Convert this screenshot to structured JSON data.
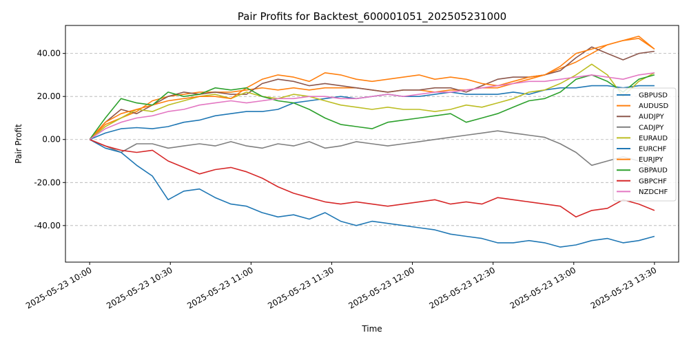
{
  "chart_data": {
    "type": "line",
    "title": "Pair Profits for Backtest_600001051_202505231000",
    "xlabel": "Time",
    "ylabel": "Pair Profit",
    "x_start": "2025-05-23 10:00",
    "x_end": "2025-05-23 13:30",
    "xlim": [
      "2025-05-23 09:51",
      "2025-05-23 13:39"
    ],
    "ylim": [
      -57,
      53
    ],
    "x_ticks": [
      "2025-05-23 10:00",
      "2025-05-23 10:30",
      "2025-05-23 11:00",
      "2025-05-23 11:30",
      "2025-05-23 12:00",
      "2025-05-23 12:30",
      "2025-05-23 13:00",
      "2025-05-23 13:30"
    ],
    "y_ticks": [
      "-40.00",
      "-20.00",
      "0.00",
      "20.00",
      "40.00"
    ],
    "grid": "horizontal dashed",
    "legend_position": "right",
    "series": [
      {
        "name": "GBPUSD",
        "color": "#1f77b4",
        "values": [
          0,
          3,
          5,
          5.5,
          5,
          6,
          8,
          9,
          11,
          12,
          13,
          13,
          14,
          17,
          18,
          19,
          20,
          19,
          20,
          21,
          20,
          20,
          21,
          22,
          21,
          21,
          21,
          22,
          21,
          23,
          24,
          24,
          25,
          25,
          24,
          25,
          25
        ]
      },
      {
        "name": "AUDUSD",
        "color": "#ff7f0e",
        "values": [
          0,
          7,
          10,
          13,
          18,
          20,
          21,
          22,
          22,
          22,
          23,
          24,
          23,
          24,
          23,
          24,
          24,
          24,
          23,
          22,
          23,
          23,
          22,
          23,
          23,
          24,
          24,
          26,
          28,
          30,
          33,
          36,
          40,
          44,
          46,
          48,
          42
        ]
      },
      {
        "name": "AUDJPY",
        "color": "#8c564b",
        "values": [
          0,
          8,
          14,
          12,
          16,
          20,
          22,
          21,
          22,
          21,
          21,
          26,
          28,
          27,
          25,
          26,
          25,
          24,
          23,
          22,
          23,
          23,
          24,
          24,
          22,
          25,
          28,
          29,
          29,
          30,
          32,
          38,
          43,
          40,
          37,
          40,
          41
        ]
      },
      {
        "name": "CADJPY",
        "color": "#7f7f7f",
        "values": [
          0,
          -3,
          -6,
          -2,
          -2,
          -4,
          -3,
          -2,
          -3,
          -1,
          -3,
          -4,
          -2,
          -3,
          -1,
          -4,
          -3,
          -1,
          -2,
          -3,
          -2,
          -1,
          0,
          1,
          2,
          3,
          4,
          3,
          2,
          1,
          -2,
          -6,
          -12,
          -10,
          -8,
          -10,
          -14
        ]
      },
      {
        "name": "EURAUD",
        "color": "#bcbd22",
        "values": [
          0,
          6,
          10,
          14,
          13,
          16,
          18,
          20,
          21,
          19,
          22,
          20,
          19,
          21,
          20,
          18,
          16,
          15,
          14,
          15,
          14,
          14,
          13,
          14,
          16,
          15,
          17,
          19,
          22,
          23,
          26,
          30,
          35,
          30,
          20,
          27,
          31
        ]
      },
      {
        "name": "EURCHF",
        "color": "#1f77b4",
        "values": [
          0,
          -4,
          -6,
          -12,
          -17,
          -28,
          -24,
          -23,
          -27,
          -30,
          -31,
          -34,
          -36,
          -35,
          -37,
          -34,
          -38,
          -40,
          -38,
          -39,
          -40,
          -41,
          -42,
          -44,
          -45,
          -46,
          -48,
          -48,
          -47,
          -48,
          -50,
          -49,
          -47,
          -46,
          -48,
          -47,
          -45
        ]
      },
      {
        "name": "EURJPY",
        "color": "#ff7f0e",
        "values": [
          0,
          8,
          12,
          14,
          16,
          18,
          19,
          20,
          20,
          19,
          24,
          28,
          30,
          29,
          27,
          31,
          30,
          28,
          27,
          28,
          29,
          30,
          28,
          29,
          28,
          26,
          25,
          27,
          29,
          30,
          34,
          40,
          42,
          44,
          46,
          47,
          42
        ]
      },
      {
        "name": "GBPAUD",
        "color": "#2ca02c",
        "values": [
          0,
          10,
          19,
          17,
          16,
          22,
          20,
          21,
          24,
          23,
          24,
          20,
          18,
          17,
          14,
          10,
          7,
          6,
          5,
          8,
          9,
          10,
          11,
          12,
          8,
          10,
          12,
          15,
          18,
          19,
          22,
          28,
          30,
          27,
          22,
          28,
          30
        ]
      },
      {
        "name": "GBPCHF",
        "color": "#d62728",
        "values": [
          0,
          -3,
          -5,
          -6,
          -5,
          -10,
          -13,
          -16,
          -14,
          -13,
          -15,
          -18,
          -22,
          -25,
          -27,
          -29,
          -30,
          -29,
          -30,
          -31,
          -30,
          -29,
          -28,
          -30,
          -29,
          -30,
          -27,
          -28,
          -29,
          -30,
          -31,
          -36,
          -33,
          -32,
          -28,
          -30,
          -33
        ]
      },
      {
        "name": "NZDCHF",
        "color": "#e377c2",
        "values": [
          0,
          5,
          8,
          10,
          11,
          13,
          14,
          16,
          17,
          18,
          17,
          18,
          19,
          19,
          20,
          20,
          19,
          19,
          20,
          21,
          20,
          21,
          22,
          22,
          23,
          24,
          25,
          26,
          27,
          27,
          28,
          29,
          30,
          29,
          28,
          30,
          31
        ]
      }
    ]
  }
}
